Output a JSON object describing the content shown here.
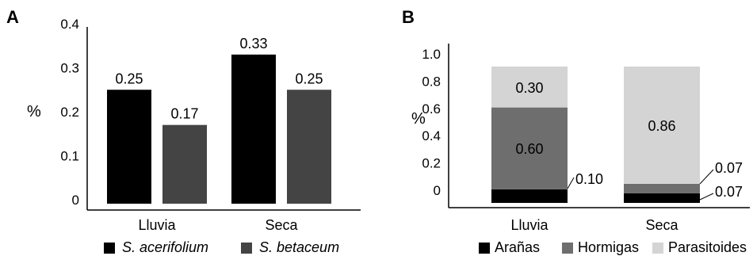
{
  "chart_data": [
    {
      "type": "bar",
      "panel": "A",
      "ylabel": "%",
      "ylim": [
        0,
        0.4
      ],
      "yticks": [
        "0",
        "0.1",
        "0.2",
        "0.3",
        "0.4"
      ],
      "categories": [
        "Lluvia",
        "Seca"
      ],
      "series": [
        {
          "name": "S. acerifolium",
          "color": "#000000",
          "values": [
            0.25,
            0.33
          ],
          "labels": [
            "0.25",
            "0.33"
          ]
        },
        {
          "name": "S. betaceum",
          "color": "#444444",
          "values": [
            0.17,
            0.25
          ],
          "labels": [
            "0.17",
            "0.25"
          ]
        }
      ],
      "legend": "bottom"
    },
    {
      "type": "bar",
      "stacked": true,
      "panel": "B",
      "ylabel": "%",
      "ylim": [
        0,
        1.0
      ],
      "yticks": [
        "0",
        "0.2",
        "0.4",
        "0.6",
        "0.8",
        "1.0"
      ],
      "categories": [
        "Lluvia",
        "Seca"
      ],
      "series": [
        {
          "name": "Arañas",
          "color": "#000000",
          "values": [
            0.1,
            0.07
          ],
          "labels": [
            "0.10",
            "0.07"
          ]
        },
        {
          "name": "Hormigas",
          "color": "#6e6e6e",
          "values": [
            0.6,
            0.07
          ],
          "labels": [
            "0.60",
            "0.07"
          ]
        },
        {
          "name": "Parasitoides",
          "color": "#d4d4d4",
          "values": [
            0.3,
            0.86
          ],
          "labels": [
            "0.30",
            "0.86"
          ]
        }
      ],
      "legend": "bottom"
    }
  ]
}
